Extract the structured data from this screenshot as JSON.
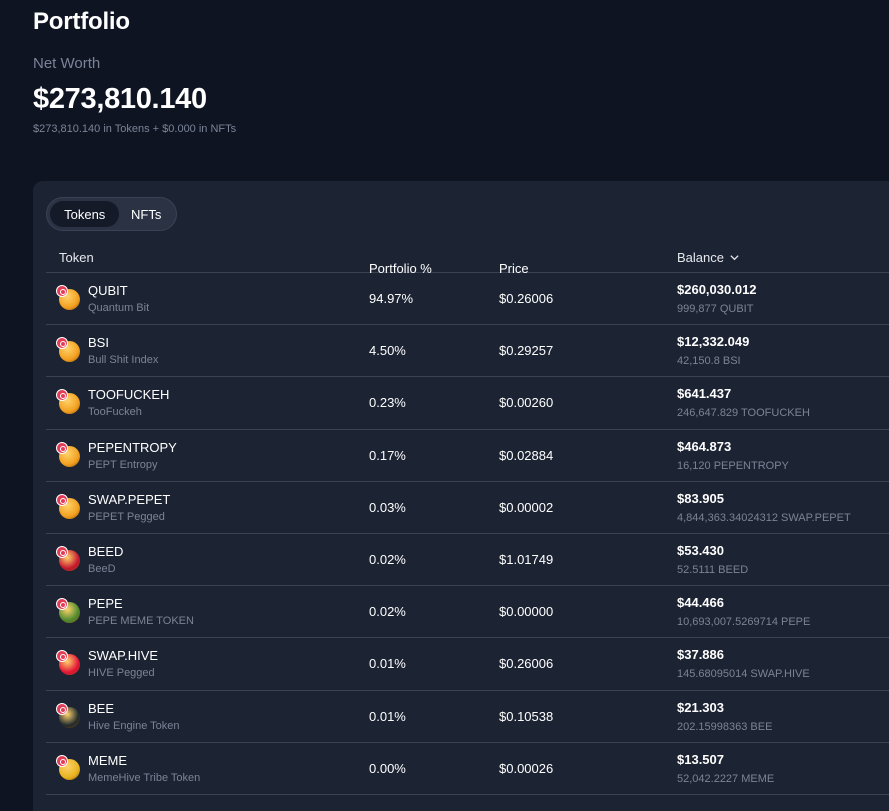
{
  "header": {
    "title": "Portfolio",
    "net_worth_label": "Net Worth",
    "net_worth_value": "$273,810.140",
    "net_worth_breakdown": "$273,810.140 in Tokens + $0.000 in NFTs"
  },
  "tabs": {
    "tokens": "Tokens",
    "nfts": "NFTs",
    "active": "tokens"
  },
  "table": {
    "columns": {
      "token": "Token",
      "portfolio_pct": "Portfolio %",
      "price": "Price",
      "balance": "Balance"
    },
    "sort_icon": "chevron-down-icon",
    "rows": [
      {
        "symbol": "QUBIT",
        "name": "Quantum Bit",
        "pct": "94.97%",
        "price": "$0.26006",
        "balance_usd": "$260,030.012",
        "balance_qty": "999,877 QUBIT",
        "icon": "qubit-token-icon",
        "color": "#f2a020"
      },
      {
        "symbol": "BSI",
        "name": "Bull Shit Index",
        "pct": "4.50%",
        "price": "$0.29257",
        "balance_usd": "$12,332.049",
        "balance_qty": "42,150.8 BSI",
        "icon": "bsi-token-icon",
        "color": "#f2a020"
      },
      {
        "symbol": "TOOFUCKEH",
        "name": "TooFuckeh",
        "pct": "0.23%",
        "price": "$0.00260",
        "balance_usd": "$641.437",
        "balance_qty": "246,647.829 TOOFUCKEH",
        "icon": "toofuckeh-token-icon",
        "color": "#f2a020"
      },
      {
        "symbol": "PEPENTROPY",
        "name": "PEPT Entropy",
        "pct": "0.17%",
        "price": "$0.02884",
        "balance_usd": "$464.873",
        "balance_qty": "16,120 PEPENTROPY",
        "icon": "pepentropy-token-icon",
        "color": "#f2a020"
      },
      {
        "symbol": "SWAP.PEPET",
        "name": "PEPET Pegged",
        "pct": "0.03%",
        "price": "$0.00002",
        "balance_usd": "$83.905",
        "balance_qty": "4,844,363.34024312 SWAP.PEPET",
        "icon": "swap-pepet-token-icon",
        "color": "#f2a020"
      },
      {
        "symbol": "BEED",
        "name": "BeeD",
        "pct": "0.02%",
        "price": "$1.01749",
        "balance_usd": "$53.430",
        "balance_qty": "52.5111 BEED",
        "icon": "beed-token-icon",
        "color": "#c4172f"
      },
      {
        "symbol": "PEPE",
        "name": "PEPE MEME TOKEN",
        "pct": "0.02%",
        "price": "$0.00000",
        "balance_usd": "$44.466",
        "balance_qty": "10,693,007.5269714 PEPE",
        "icon": "pepe-token-icon",
        "color": "#4e8a2e"
      },
      {
        "symbol": "SWAP.HIVE",
        "name": "HIVE Pegged",
        "pct": "0.01%",
        "price": "$0.26006",
        "balance_usd": "$37.886",
        "balance_qty": "145.68095014 SWAP.HIVE",
        "icon": "swap-hive-token-icon",
        "color": "#e31337"
      },
      {
        "symbol": "BEE",
        "name": "Hive Engine Token",
        "pct": "0.01%",
        "price": "$0.10538",
        "balance_usd": "$21.303",
        "balance_qty": "202.15998363 BEE",
        "icon": "bee-token-icon",
        "color": "#1f2a2e"
      },
      {
        "symbol": "MEME",
        "name": "MemeHive Tribe Token",
        "pct": "0.00%",
        "price": "$0.00026",
        "balance_usd": "$13.507",
        "balance_qty": "52,042.2227 MEME",
        "icon": "meme-token-icon",
        "color": "#e8b320"
      }
    ]
  }
}
